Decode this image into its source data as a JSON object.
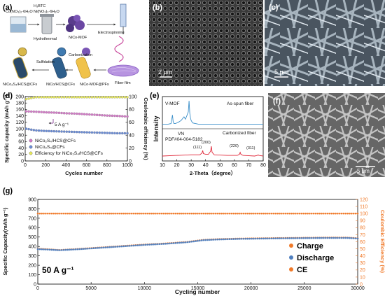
{
  "panels": {
    "a": {
      "label": "(a)",
      "chem_left": "Co(NO₃)₂·6H₂O",
      "chem_right_top": "H₃BTC",
      "chem_right": "Ni(NO₃)₂·6H₂O",
      "step_hydrothermal": "Hydrothermal",
      "mof_label": "NiCo-MOF",
      "step_electrospinning": "Electrospinning",
      "fiber_film": "Fiber film",
      "step_carbonization": "Carbonization",
      "step_sulfidation": "Sulfidation",
      "product_1": "NiCo₂S₄/HCS@CFs",
      "product_2": "NiCo/HCS@CFs",
      "product_3": "NiCo-MOF@PFs"
    },
    "b": {
      "label": "(b)",
      "scale_bar": "2 μm",
      "bg_color": "#3a3a3a"
    },
    "c": {
      "label": "(c)",
      "scale_bar": "5 μm",
      "bg_color": "#4a5560"
    },
    "f": {
      "label": "(f)",
      "scale_bar": "5 μm",
      "bg_color": "#666666"
    },
    "d": {
      "label": "(d)",
      "annotation": "5 A g⁻¹"
    },
    "e": {
      "label": "(e)",
      "annotation_mof": "V-MOF",
      "annotation_asspun": "As-spun fiber",
      "annotation_vn": "VN",
      "annotation_pdf": "PDF#04-004-5182",
      "annotation_carb": "Carbonized fiber",
      "peak_111": "(111)",
      "peak_200": "(200)",
      "peak_220": "(220)",
      "peak_311": "(311)"
    },
    "g": {
      "label": "(g)",
      "annotation": "50 A g⁻¹"
    }
  },
  "chart_data": [
    {
      "id": "d",
      "type": "scatter",
      "xlabel": "Cycles number",
      "ylabel": "Specific capacity (mAh g⁻¹)",
      "ylabel_right": "Coulombic efficiency (%)",
      "xlim": [
        0,
        1000
      ],
      "ylim": [
        0,
        200
      ],
      "ylim_right": [
        0,
        100
      ],
      "xticks": [
        0,
        200,
        400,
        600,
        800,
        1000
      ],
      "yticks": [
        0,
        20,
        40,
        60,
        80,
        100,
        120,
        140,
        160,
        180,
        200
      ],
      "yticks_right": [
        0,
        20,
        40,
        60,
        80,
        100
      ],
      "legend_position": "bottom-left",
      "series": [
        {
          "name": "NiCo₂S₄/HCS@CFs",
          "axis": "left",
          "color": "#d47ac8",
          "marker": "circle",
          "x": [
            10,
            100,
            200,
            300,
            400,
            500,
            600,
            700,
            800,
            900,
            1000
          ],
          "y": [
            154,
            153,
            151,
            150,
            148,
            147,
            145,
            143,
            141,
            140,
            138
          ]
        },
        {
          "name": "NiCo₂S₄@CFs",
          "axis": "left",
          "color": "#6a8cd6",
          "marker": "circle",
          "x": [
            10,
            100,
            200,
            300,
            400,
            500,
            600,
            700,
            800,
            900,
            1000
          ],
          "y": [
            100,
            95,
            93,
            92,
            91,
            90,
            89,
            88,
            87,
            86,
            86
          ]
        },
        {
          "name": "Efficiency for  NiCo₂S₄/HCS@CFs",
          "axis": "right",
          "color": "#e8ea5a",
          "marker": "circle",
          "x": [
            10,
            100,
            200,
            300,
            400,
            500,
            600,
            700,
            800,
            900,
            1000
          ],
          "y": [
            96,
            99,
            99,
            99,
            99,
            99,
            99,
            99,
            99,
            99,
            99
          ]
        }
      ]
    },
    {
      "id": "e",
      "type": "line",
      "xlabel": "2-Theta（degree）",
      "ylabel": "Intensity",
      "xlim": [
        10,
        80
      ],
      "xticks": [
        10,
        20,
        30,
        40,
        50,
        60,
        70,
        80
      ],
      "series": [
        {
          "name": "As-spun fiber",
          "color": "#3a8fc9",
          "x": [
            10,
            14,
            16,
            17,
            17.5,
            18,
            19,
            21,
            23,
            25,
            26,
            27,
            28,
            28.5,
            29,
            29.5,
            30,
            31,
            33,
            35,
            40,
            50,
            60,
            70,
            80
          ],
          "y": [
            0.6,
            0.6,
            0.61,
            0.75,
            0.64,
            0.61,
            0.61,
            0.63,
            0.66,
            0.72,
            0.68,
            0.74,
            0.8,
            0.98,
            0.78,
            0.7,
            0.66,
            0.62,
            0.61,
            0.6,
            0.6,
            0.6,
            0.6,
            0.6,
            0.6
          ]
        },
        {
          "name": "Carbonized fiber",
          "color": "#e0283a",
          "x": [
            10,
            20,
            30,
            36,
            37.5,
            38,
            38.5,
            40,
            42,
            43.5,
            44,
            44.5,
            46,
            55,
            62,
            63.5,
            64,
            64.5,
            66,
            74,
            76,
            76.5,
            77,
            80
          ],
          "y": [
            0.08,
            0.09,
            0.1,
            0.1,
            0.13,
            0.17,
            0.12,
            0.11,
            0.11,
            0.16,
            0.24,
            0.14,
            0.1,
            0.09,
            0.09,
            0.11,
            0.14,
            0.11,
            0.09,
            0.08,
            0.09,
            0.1,
            0.09,
            0.08
          ]
        }
      ]
    },
    {
      "id": "g",
      "type": "scatter",
      "xlabel": "Cycling number",
      "ylabel": "Specific Capacity(mAh g⁻¹)",
      "ylabel_right": "Coulombic Efficiency (%)",
      "xlim": [
        0,
        30000
      ],
      "ylim": [
        0,
        900
      ],
      "ylim_right": [
        0,
        120
      ],
      "xticks": [
        0,
        5000,
        10000,
        15000,
        20000,
        25000,
        30000
      ],
      "yticks": [
        0,
        100,
        200,
        300,
        400,
        500,
        600,
        700,
        800,
        900
      ],
      "yticks_right": [
        0,
        10,
        20,
        30,
        40,
        50,
        60,
        70,
        80,
        90,
        100,
        110,
        120
      ],
      "legend_position": "right",
      "right_axis_color": "#f07a2a",
      "series": [
        {
          "name": "Charge",
          "axis": "left",
          "color": "#f07a2a",
          "x": [
            0,
            1000,
            2000,
            4000,
            6000,
            8000,
            10000,
            12000,
            14000,
            15500,
            17000,
            19000,
            21000,
            23000,
            25000,
            27000,
            29000,
            30000
          ],
          "y": [
            375,
            370,
            362,
            375,
            390,
            405,
            420,
            432,
            448,
            470,
            478,
            484,
            487,
            490,
            492,
            494,
            494,
            488
          ]
        },
        {
          "name": "Discharge",
          "axis": "left",
          "color": "#4f7fbf",
          "x": [
            0,
            1000,
            2000,
            4000,
            6000,
            8000,
            10000,
            12000,
            14000,
            15500,
            17000,
            19000,
            21000,
            23000,
            25000,
            27000,
            29000,
            30000
          ],
          "y": [
            372,
            367,
            360,
            372,
            387,
            402,
            417,
            429,
            445,
            467,
            475,
            481,
            484,
            487,
            489,
            491,
            491,
            485
          ]
        },
        {
          "name": "CE",
          "axis": "right",
          "color": "#f07a2a",
          "x": [
            0,
            30000
          ],
          "y": [
            100,
            100
          ]
        }
      ]
    }
  ]
}
